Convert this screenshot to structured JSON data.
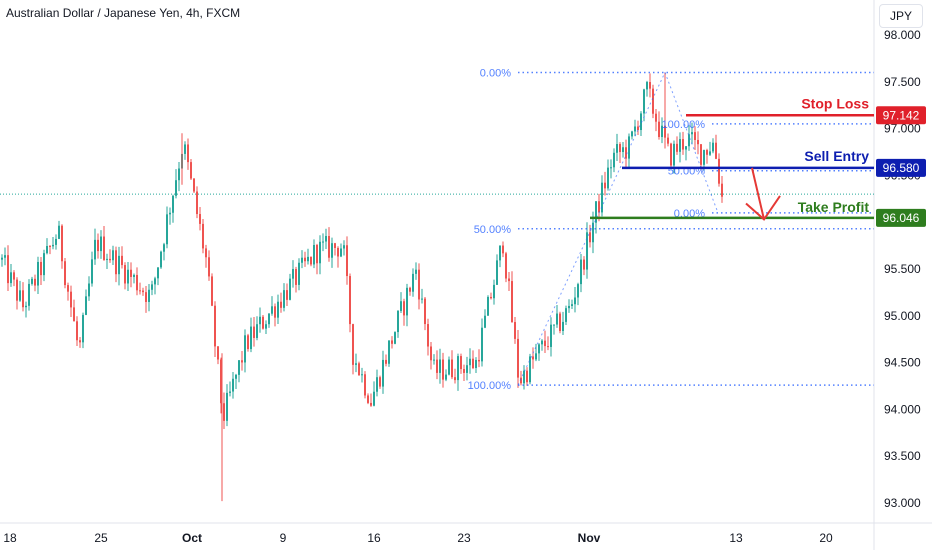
{
  "header": {
    "title": "Australian Dollar / Japanese Yen, 4h, FXCM",
    "currency": "JPY"
  },
  "colors": {
    "up": "#26a69a",
    "down": "#ef5350",
    "fib": "#2962ff",
    "stop_loss": "#e0202a",
    "sell_entry": "#0d1eb0",
    "take_profit": "#2e7d1e",
    "arrow": "#e53935"
  },
  "chart_data": {
    "type": "candlestick",
    "title": "Australian Dollar / Japanese Yen, 4h, FXCM",
    "x_tick_labels": [
      "18",
      "25",
      "Oct",
      "9",
      "16",
      "23",
      "Nov",
      "13",
      "20"
    ],
    "y_tick_labels": [
      "98.000",
      "97.500",
      "97.000",
      "96.500",
      "96.000",
      "95.500",
      "95.000",
      "94.500",
      "94.000",
      "93.500",
      "93.000"
    ],
    "ylim": [
      92.95,
      98.1
    ],
    "grid": false,
    "waypoints": [
      {
        "x": "18",
        "value": 95.6
      },
      {
        "x": "19",
        "value": 95.1
      },
      {
        "x": "21",
        "value": 95.9
      },
      {
        "x": "22",
        "value": 94.6
      },
      {
        "x": "25",
        "value": 95.8
      },
      {
        "x": "27",
        "value": 95.2
      },
      {
        "x": "29",
        "value": 96.85
      },
      {
        "x": "Oct 2",
        "value": 95.6
      },
      {
        "x": "Oct 3",
        "value": 93.9
      },
      {
        "x": "Oct 6",
        "value": 94.7
      },
      {
        "x": "Oct 10",
        "value": 95.7
      },
      {
        "x": "Oct 13",
        "value": 95.75
      },
      {
        "x": "Oct 14",
        "value": 94.6
      },
      {
        "x": "Oct 16",
        "value": 94.1
      },
      {
        "x": "Oct 18",
        "value": 95.5
      },
      {
        "x": "Oct 19",
        "value": 94.4
      },
      {
        "x": "Oct 23",
        "value": 94.5
      },
      {
        "x": "Oct 25",
        "value": 95.8
      },
      {
        "x": "Oct 26",
        "value": 94.3
      },
      {
        "x": "Oct 30",
        "value": 95.1
      },
      {
        "x": "Nov 1",
        "value": 96.0
      },
      {
        "x": "Nov 2",
        "value": 96.7
      },
      {
        "x": "Nov 4",
        "value": 96.8
      },
      {
        "x": "Nov 6",
        "value": 97.4
      },
      {
        "x": "Nov 7",
        "value": 96.7
      },
      {
        "x": "Nov 8",
        "value": 96.9
      },
      {
        "x": "Nov 9",
        "value": 96.75
      },
      {
        "x": "Nov 10",
        "value": 96.85
      },
      {
        "x": "Nov 11",
        "value": 96.2
      }
    ],
    "last_price": 96.3,
    "fib_levels": [
      {
        "label": "0.00%",
        "value": 97.6
      },
      {
        "label": "50.00%",
        "value": 95.93
      },
      {
        "label": "100.00%",
        "value": 94.26
      },
      {
        "label": "100.00%",
        "value": 97.05
      },
      {
        "label": "50.00%",
        "value": 96.55
      },
      {
        "label": "0.00%",
        "value": 96.1
      }
    ],
    "trade_levels": [
      {
        "name": "Stop Loss",
        "value": 97.142
      },
      {
        "name": "Sell Entry",
        "value": 96.58
      },
      {
        "name": "Take Profit",
        "value": 96.046
      }
    ],
    "price_tags": [
      "97.142",
      "96.580",
      "96.046"
    ]
  }
}
